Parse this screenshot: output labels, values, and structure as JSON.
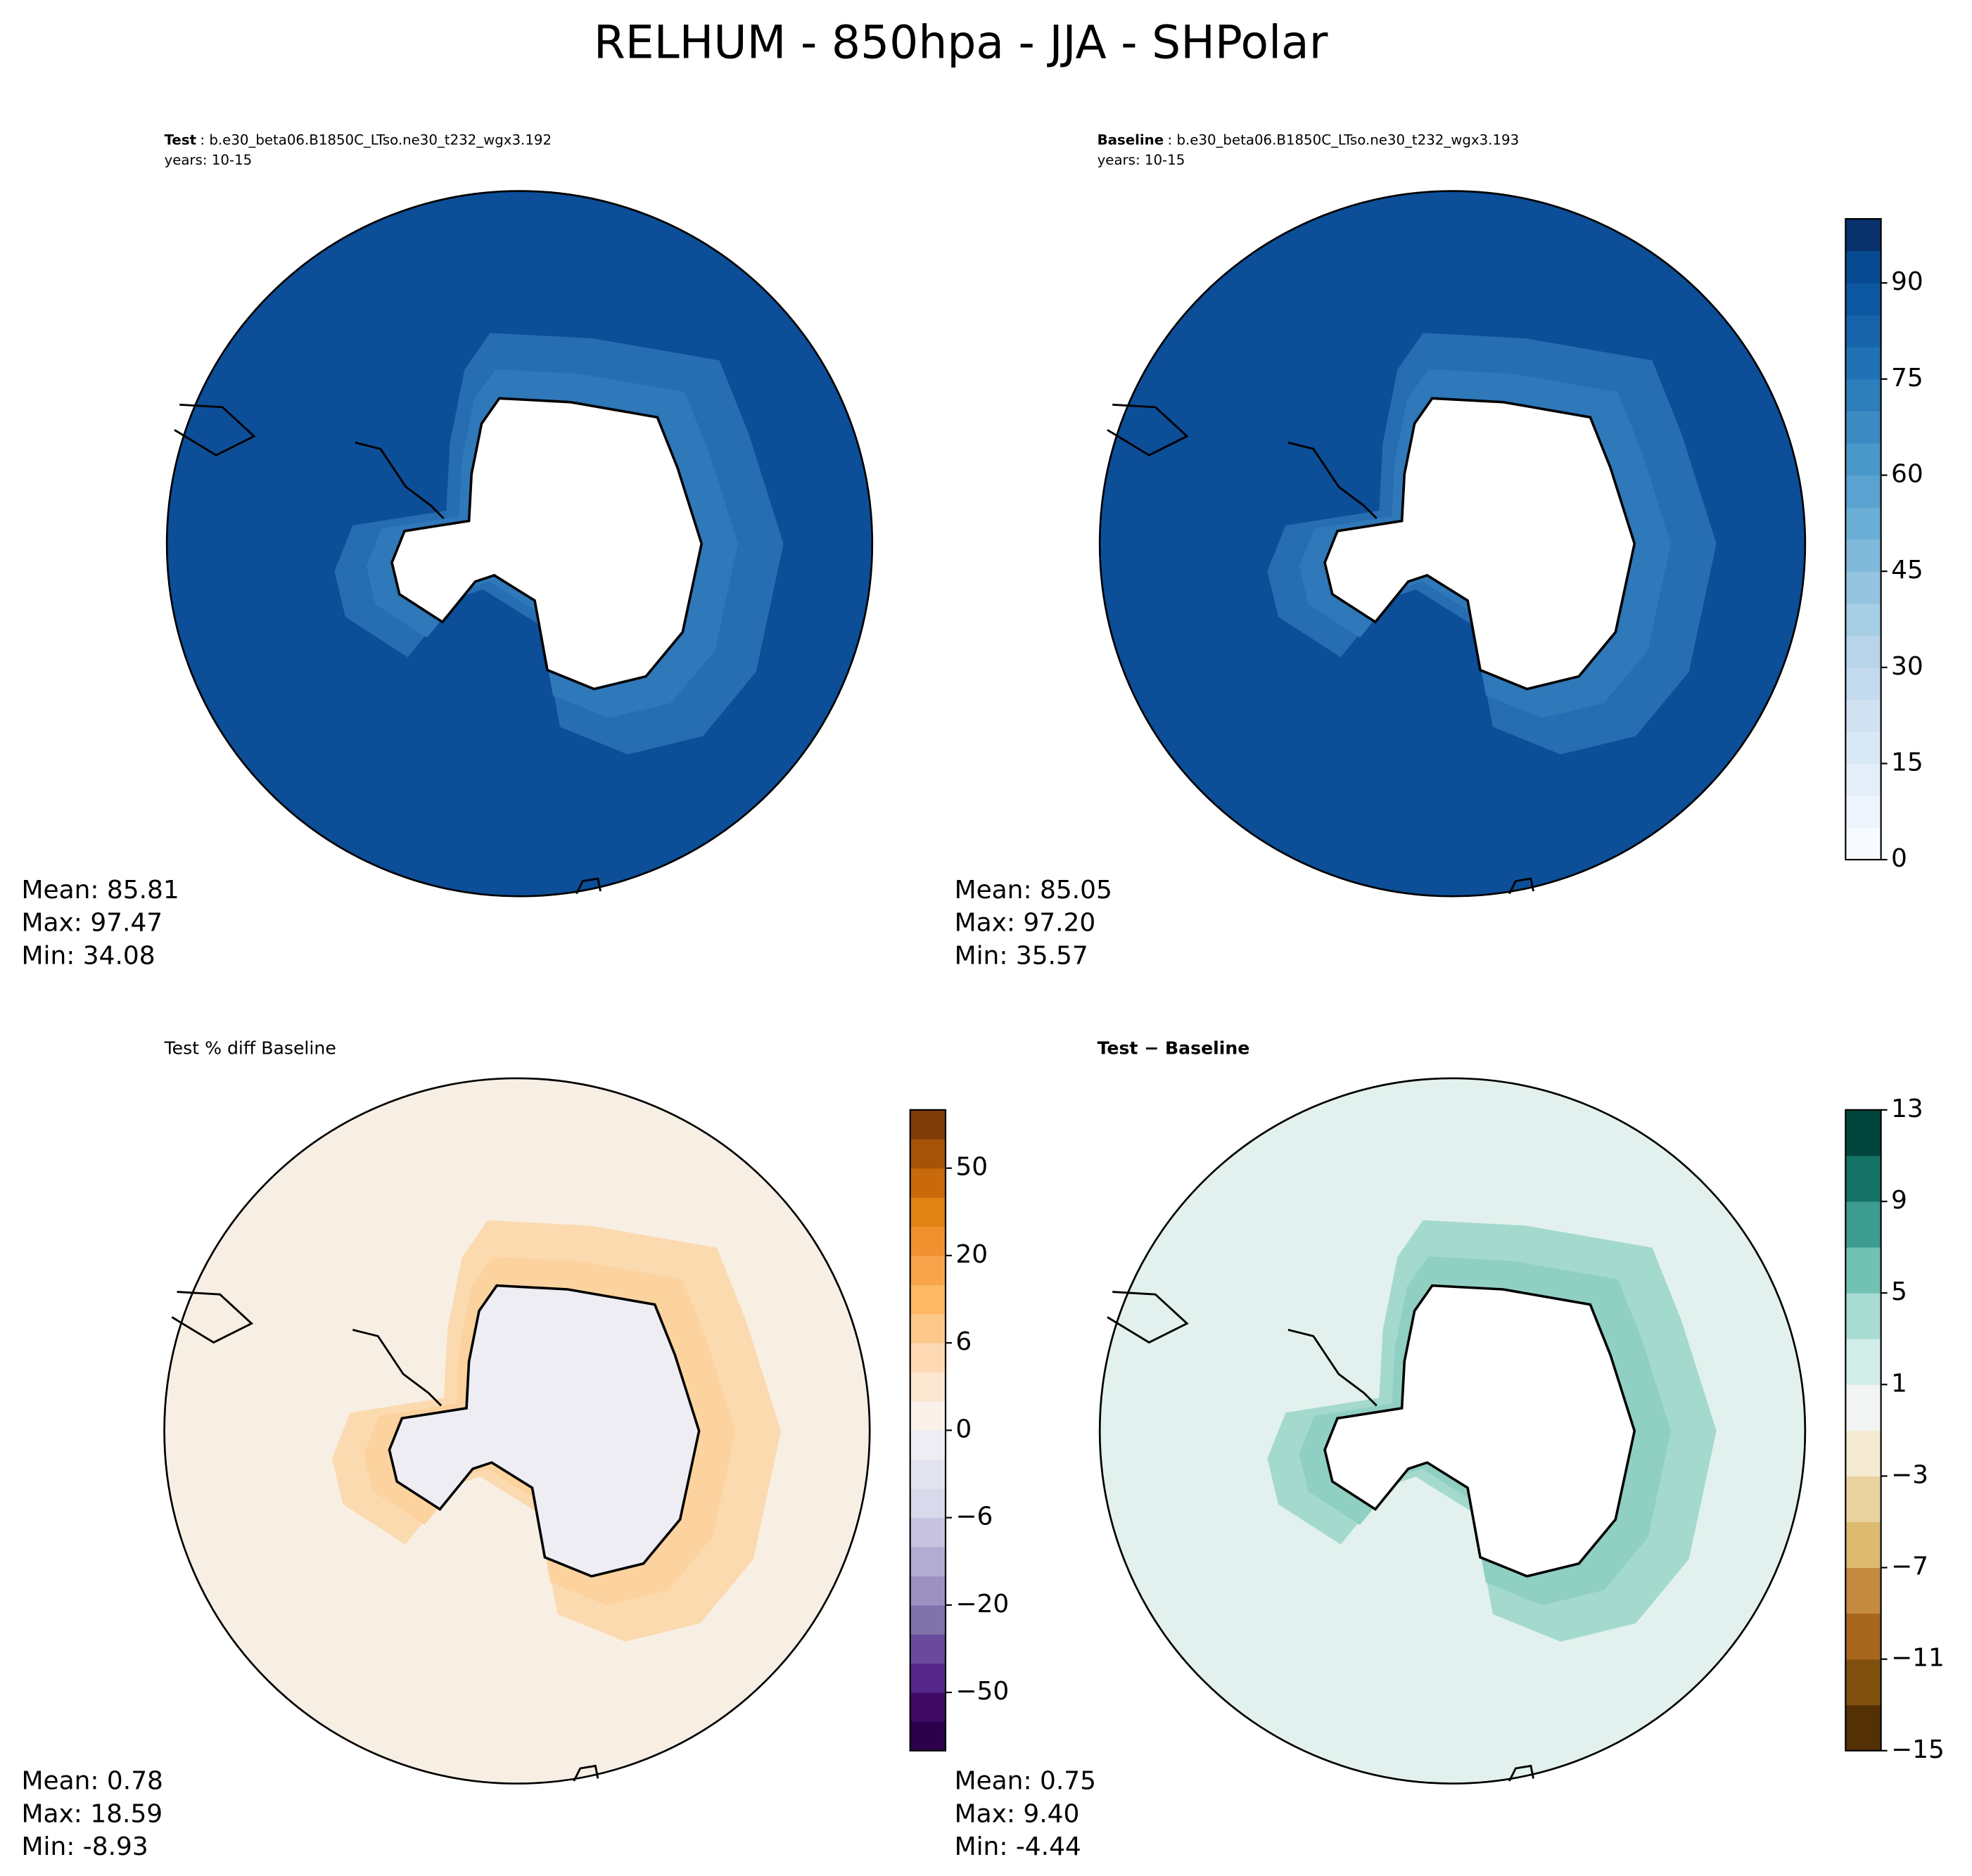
{
  "title": "RELHUM - 850hpa - JJA - SHPolar",
  "chart_data": [
    {
      "type": "map",
      "title_bold": "Test",
      "title": ": b.e30_beta06.B1850C_LTso.ne30_t232_wgx3.192",
      "subtitle": "years: 10-15",
      "stats": [
        "Mean: 85.81",
        "Max: 97.47",
        "Min: 34.08"
      ],
      "fill": "#0c4e98",
      "ring": "#2f78b9",
      "land": "#ffffff"
    },
    {
      "type": "map",
      "title_bold": "Baseline",
      "title": ": b.e30_beta06.B1850C_LTso.ne30_t232_wgx3.193",
      "subtitle": "years: 10-15",
      "stats": [
        "Mean: 85.05",
        "Max: 97.20",
        "Min: 35.57"
      ],
      "fill": "#0c4e98",
      "ring": "#2f78b9",
      "land": "#ffffff",
      "colorbar": {
        "ylim": [
          0,
          100
        ],
        "yticks": [
          0,
          15,
          30,
          45,
          60,
          75,
          90
        ],
        "colors": [
          "#f7fbff",
          "#eef5fc",
          "#e3eef9",
          "#d9e8f5",
          "#d0e1f2",
          "#c4daee",
          "#b7d4ea",
          "#a6cee4",
          "#94c4df",
          "#80b9da",
          "#6aaed6",
          "#5aa2cf",
          "#4a98c9",
          "#3b8bc2",
          "#2e7ebc",
          "#2171b5",
          "#1764ab",
          "#0d57a1",
          "#084a91",
          "#08306b"
        ]
      }
    },
    {
      "type": "map",
      "title": "Test % diff Baseline",
      "stats": [
        "Mean:  0.78",
        "Max: 18.59",
        "Min: -8.93"
      ],
      "fill": "#f8efe4",
      "ring": "#fcd39f",
      "land": "#eeedf4",
      "colorbar": {
        "levels": [
          -75,
          -60,
          -50,
          -40,
          -30,
          -20,
          -15,
          -10,
          -6,
          -4,
          -2,
          0,
          2,
          4,
          6,
          10,
          15,
          20,
          30,
          40,
          50,
          60,
          75
        ],
        "yticks": [
          {
            "value": -50,
            "label": "−50"
          },
          {
            "value": -20,
            "label": "−20"
          },
          {
            "value": -6,
            "label": "−6"
          },
          0,
          6,
          20,
          50
        ],
        "colors": [
          "#2d004b",
          "#3f0a63",
          "#542788",
          "#6a4a9c",
          "#8073ac",
          "#9c92c2",
          "#b2abd2",
          "#c8c3e0",
          "#d8daeb",
          "#e4e3f0",
          "#eeedf4",
          "#faf2ea",
          "#fbe6d0",
          "#fdd9b4",
          "#fdc98a",
          "#fdb863",
          "#f8a44b",
          "#f0912f",
          "#e08214",
          "#c86a0c",
          "#a65207",
          "#7f3b08"
        ]
      }
    },
    {
      "type": "map",
      "title_bold": "Test − Baseline",
      "stats": [
        "Mean:  0.75",
        "Max:  9.40",
        "Min: -4.44"
      ],
      "fill": "#e2f1ed",
      "ring": "#8fd0c3",
      "land": "#ffffff",
      "colorbar": {
        "ylim": [
          -15,
          13
        ],
        "yticks": [
          {
            "value": -15,
            "label": "−15"
          },
          {
            "value": -11,
            "label": "−11"
          },
          {
            "value": -7,
            "label": "−7"
          },
          {
            "value": -3,
            "label": "−3"
          },
          1,
          5,
          9,
          13
        ],
        "colors": [
          "#543005",
          "#80500f",
          "#a6661c",
          "#c48a3f",
          "#dcba6f",
          "#ead39f",
          "#f4ead2",
          "#f3f5f4",
          "#d3ede8",
          "#a8dcd2",
          "#72c2b4",
          "#3b9c8f",
          "#147365",
          "#01463c"
        ]
      }
    }
  ]
}
